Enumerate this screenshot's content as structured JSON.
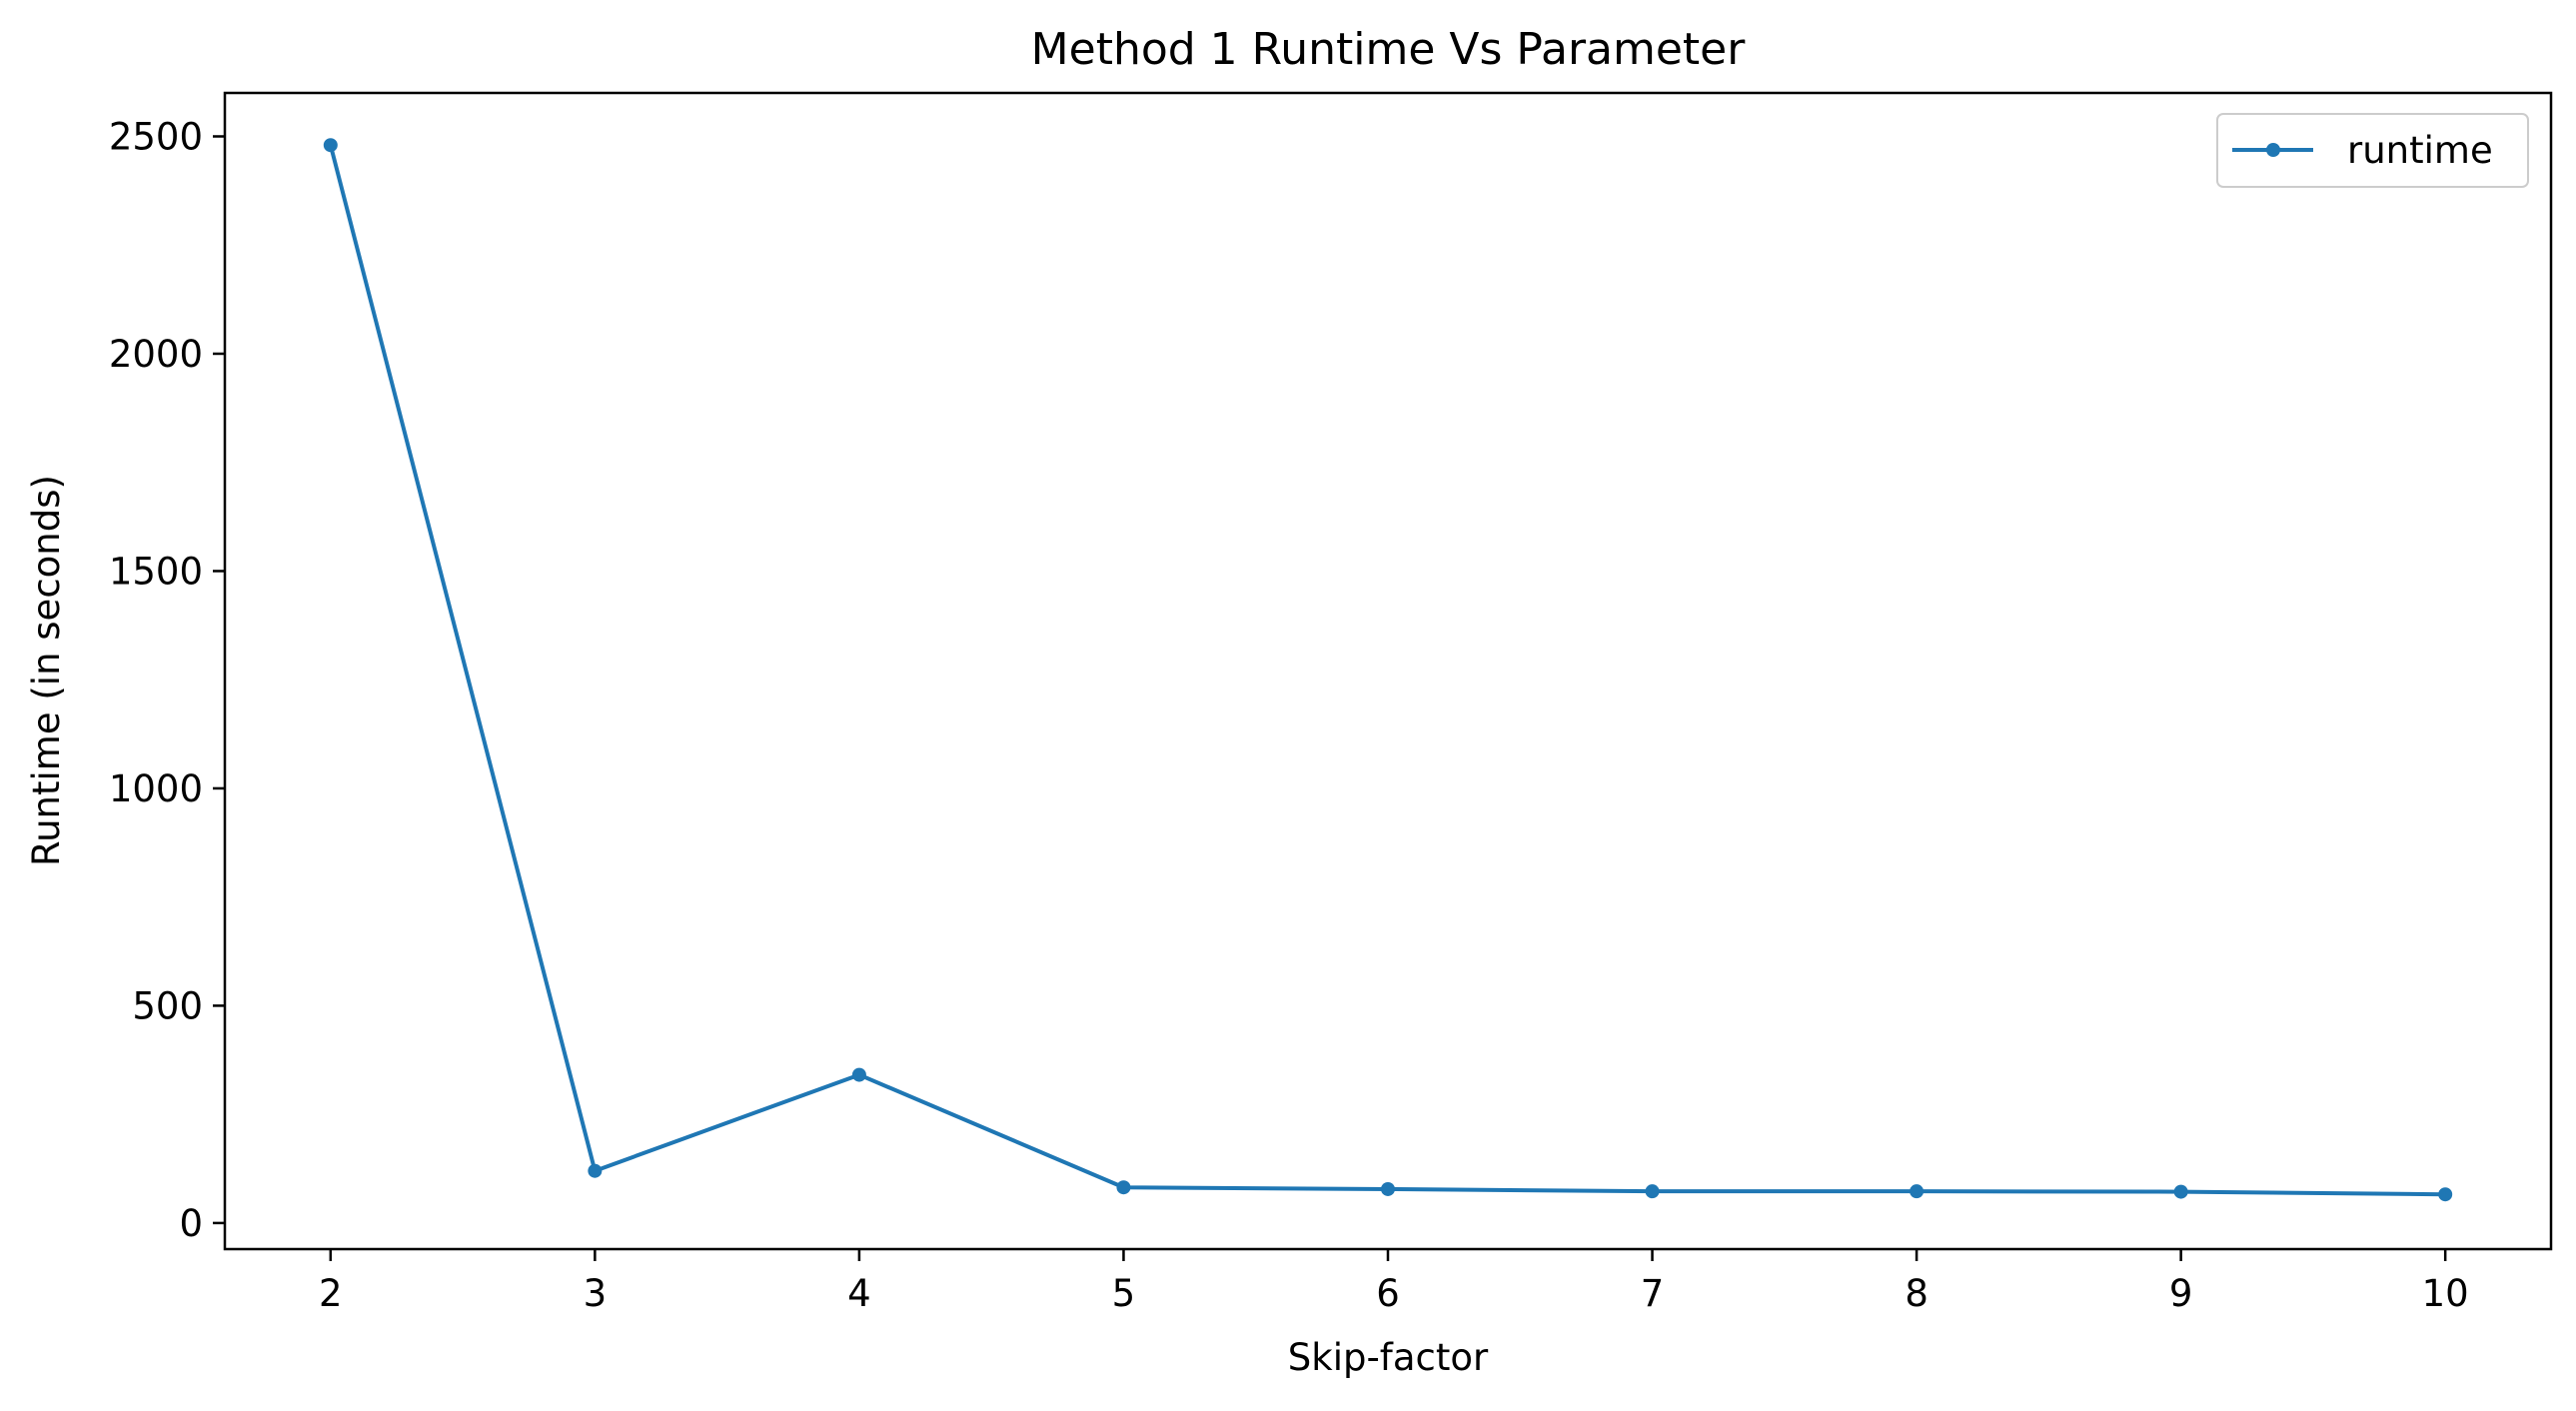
{
  "chart_data": {
    "type": "line",
    "title": "Method 1 Runtime Vs Parameter",
    "xlabel": "Skip-factor",
    "ylabel": "Runtime (in seconds)",
    "xlim": [
      1.6,
      10.4
    ],
    "ylim": [
      -60,
      2600
    ],
    "x_ticks": [
      2,
      3,
      4,
      5,
      6,
      7,
      8,
      9,
      10
    ],
    "y_ticks": [
      0,
      500,
      1000,
      1500,
      2000,
      2500
    ],
    "grid": false,
    "legend_position": "top-right",
    "series": [
      {
        "name": "runtime",
        "color": "#1f77b4",
        "marker": "circle",
        "x": [
          2,
          3,
          4,
          5,
          6,
          7,
          8,
          9,
          10
        ],
        "values": [
          2480,
          120,
          341,
          82,
          78,
          73,
          73,
          72,
          66
        ]
      }
    ]
  }
}
